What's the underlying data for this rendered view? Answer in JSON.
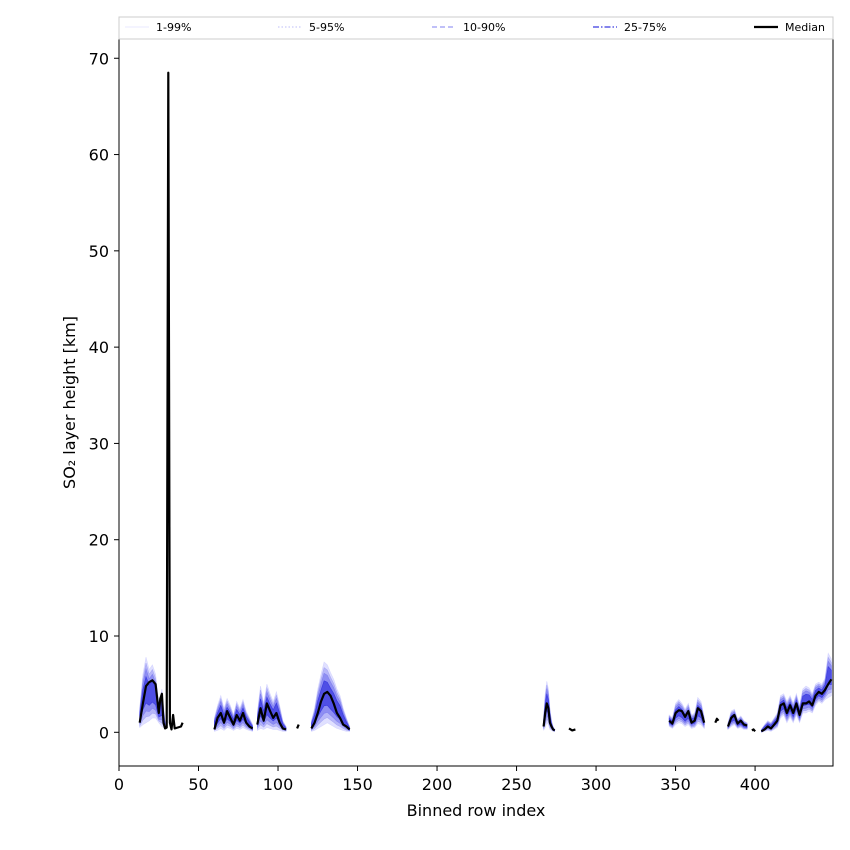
{
  "chart_data": {
    "type": "line",
    "xlabel": "Binned row index",
    "ylabel": "SO₂ layer height [km]",
    "xlim": [
      0,
      449
    ],
    "ylim": [
      -3.5,
      72
    ],
    "xticks": [
      0,
      50,
      100,
      150,
      200,
      250,
      300,
      350,
      400
    ],
    "yticks": [
      0,
      10,
      20,
      30,
      40,
      50,
      60,
      70
    ],
    "grid": false,
    "legend_position": "top",
    "legend": [
      {
        "label": "1-99%",
        "color": "#d6d6ff",
        "style": "solid",
        "width": 0.6
      },
      {
        "label": "5-95%",
        "color": "#a8a8f5",
        "style": "dotted",
        "width": 0.8
      },
      {
        "label": "10-90%",
        "color": "#8080f0",
        "style": "dashed",
        "width": 1.0
      },
      {
        "label": "25-75%",
        "color": "#3a3ae0",
        "style": "dashdot",
        "width": 1.3
      },
      {
        "label": "Median",
        "color": "#000000",
        "style": "solid",
        "width": 2.2
      }
    ],
    "series": [
      {
        "name": "Median",
        "segments": [
          {
            "x": [
              13,
              15,
              17,
              19,
              21,
              23,
              25,
              26,
              27,
              28,
              29,
              30,
              31,
              32,
              33,
              34,
              35,
              37,
              39,
              40
            ],
            "y": [
              1.0,
              3.0,
              4.8,
              5.2,
              5.4,
              5.0,
              2.0,
              3.5,
              4.0,
              1.0,
              0.4,
              0.5,
              68.5,
              1.0,
              0.3,
              1.8,
              0.4,
              0.5,
              0.6,
              1.0
            ]
          },
          {
            "x": [
              60,
              62,
              64,
              66,
              68,
              70,
              72,
              74,
              76,
              78,
              80,
              82,
              84
            ],
            "y": [
              0.3,
              1.5,
              2.0,
              1.0,
              2.2,
              1.5,
              0.8,
              1.8,
              1.2,
              2.0,
              1.0,
              0.6,
              0.4
            ]
          },
          {
            "x": [
              87,
              89,
              91,
              93,
              95,
              97,
              99,
              101,
              103,
              105
            ],
            "y": [
              0.8,
              2.5,
              1.2,
              3.0,
              2.2,
              1.5,
              2.0,
              1.0,
              0.4,
              0.3
            ]
          },
          {
            "x": [
              112,
              113
            ],
            "y": [
              0.4,
              0.8
            ]
          },
          {
            "x": [
              121,
              123,
              125,
              127,
              129,
              131,
              133,
              135,
              137,
              139,
              141,
              143,
              145
            ],
            "y": [
              0.4,
              1.0,
              2.0,
              3.2,
              4.0,
              4.2,
              3.8,
              3.0,
              2.0,
              1.5,
              0.8,
              0.6,
              0.3
            ]
          },
          {
            "x": [
              267,
              268,
              269,
              270,
              271,
              272,
              273,
              274
            ],
            "y": [
              0.6,
              2.0,
              3.0,
              2.5,
              1.0,
              0.6,
              0.3,
              0.2
            ]
          },
          {
            "x": [
              283,
              285,
              287
            ],
            "y": [
              0.4,
              0.2,
              0.3
            ]
          },
          {
            "x": [
              346,
              348,
              350,
              352,
              354,
              356,
              358,
              360,
              362,
              364,
              366,
              368
            ],
            "y": [
              1.2,
              0.9,
              2.0,
              2.3,
              2.2,
              1.6,
              2.2,
              1.0,
              1.2,
              2.5,
              2.2,
              1.0
            ]
          },
          {
            "x": [
              375,
              376,
              377
            ],
            "y": [
              1.0,
              1.4,
              1.2
            ]
          },
          {
            "x": [
              383,
              385,
              387,
              389,
              391,
              393,
              395
            ],
            "y": [
              0.6,
              1.5,
              1.8,
              0.9,
              1.2,
              0.8,
              0.7
            ]
          },
          {
            "x": [
              398,
              399,
              400
            ],
            "y": [
              0.2,
              0.3,
              0.1
            ]
          },
          {
            "x": [
              404,
              406,
              408,
              410,
              412,
              414,
              416,
              418,
              420,
              422,
              424,
              426,
              428,
              430,
              432,
              434,
              436,
              438,
              440,
              442,
              444,
              446,
              448
            ],
            "y": [
              0.1,
              0.3,
              0.6,
              0.4,
              0.8,
              1.2,
              2.8,
              3.0,
              2.0,
              2.8,
              2.0,
              3.0,
              1.8,
              3.0,
              3.0,
              3.2,
              2.8,
              3.8,
              4.2,
              4.0,
              4.4,
              5.0,
              5.5
            ]
          }
        ]
      }
    ],
    "percentile_bands": [
      {
        "x": [
          13,
          15,
          17,
          19,
          21,
          23,
          25,
          27,
          29
        ],
        "low": [
          0.5,
          0.8,
          1.0,
          1.2,
          1.5,
          1.5,
          1.0,
          0.6,
          0.4
        ],
        "high": [
          2.5,
          6.0,
          7.8,
          6.5,
          7.0,
          6.0,
          3.0,
          4.5,
          1.0
        ]
      },
      {
        "x": [
          60,
          62,
          64,
          66,
          68,
          70,
          72,
          74,
          76,
          78,
          80,
          82,
          84
        ],
        "low": [
          0.1,
          0.2,
          0.4,
          0.2,
          0.5,
          0.4,
          0.2,
          0.4,
          0.3,
          0.5,
          0.3,
          0.2,
          0.1
        ],
        "high": [
          1.5,
          2.8,
          3.8,
          2.5,
          3.5,
          2.8,
          1.8,
          3.2,
          2.5,
          3.4,
          2.2,
          1.5,
          0.8
        ]
      },
      {
        "x": [
          87,
          89,
          91,
          93,
          95,
          97,
          99,
          101,
          103,
          105
        ],
        "low": [
          0.2,
          0.4,
          0.3,
          0.5,
          0.4,
          0.3,
          0.3,
          0.2,
          0.1,
          0.1
        ],
        "high": [
          2.0,
          4.8,
          3.0,
          5.0,
          4.0,
          3.2,
          4.2,
          2.8,
          1.2,
          0.6
        ]
      },
      {
        "x": [
          121,
          123,
          125,
          127,
          129,
          131,
          133,
          135,
          137,
          139,
          141,
          143,
          145
        ],
        "low": [
          0.1,
          0.2,
          0.4,
          0.6,
          0.8,
          1.0,
          0.8,
          0.6,
          0.4,
          0.3,
          0.2,
          0.1,
          0.1
        ],
        "high": [
          1.2,
          2.5,
          4.5,
          6.0,
          7.3,
          7.0,
          6.2,
          5.5,
          4.5,
          3.8,
          2.5,
          1.5,
          0.6
        ]
      },
      {
        "x": [
          267,
          268,
          269,
          270,
          271,
          272,
          273,
          274
        ],
        "low": [
          0.2,
          0.5,
          1.0,
          0.8,
          0.3,
          0.2,
          0.1,
          0.1
        ],
        "high": [
          1.5,
          4.0,
          5.3,
          4.5,
          2.5,
          1.2,
          0.6,
          0.3
        ]
      },
      {
        "x": [
          346,
          348,
          350,
          352,
          354,
          356,
          358,
          360,
          362,
          364,
          366,
          368
        ],
        "low": [
          0.6,
          0.4,
          0.8,
          1.0,
          0.9,
          0.6,
          0.8,
          0.4,
          0.5,
          0.9,
          0.8,
          0.4
        ],
        "high": [
          1.8,
          1.5,
          3.0,
          3.4,
          3.0,
          2.4,
          3.0,
          1.8,
          2.0,
          3.6,
          3.2,
          1.6
        ]
      },
      {
        "x": [
          383,
          385,
          387,
          389,
          391,
          393,
          395
        ],
        "low": [
          0.3,
          0.6,
          0.8,
          0.4,
          0.5,
          0.3,
          0.3
        ],
        "high": [
          1.0,
          2.2,
          2.4,
          1.4,
          1.7,
          1.2,
          1.0
        ]
      },
      {
        "x": [
          404,
          406,
          408,
          410,
          412,
          414,
          416,
          418,
          420,
          422,
          424,
          426,
          428,
          430,
          432,
          434,
          436,
          438,
          440,
          442,
          444,
          446,
          448
        ],
        "low": [
          0.0,
          0.1,
          0.2,
          0.1,
          0.3,
          0.5,
          1.5,
          1.8,
          1.0,
          1.6,
          1.0,
          1.8,
          1.0,
          2.0,
          2.0,
          2.2,
          2.0,
          2.8,
          3.2,
          3.0,
          3.4,
          3.6,
          3.8
        ],
        "high": [
          0.3,
          0.8,
          1.2,
          1.0,
          1.5,
          2.0,
          3.8,
          4.0,
          3.2,
          3.8,
          3.0,
          4.0,
          2.8,
          4.5,
          4.8,
          4.6,
          4.0,
          5.0,
          5.2,
          5.0,
          5.6,
          8.2,
          7.6
        ]
      }
    ]
  }
}
